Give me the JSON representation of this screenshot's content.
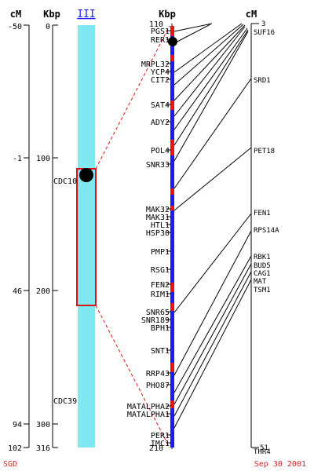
{
  "headers": {
    "left_cm": "cM",
    "left_kbp": "Kbp",
    "chromosome": "III",
    "right_kbp": "Kbp",
    "right_cm": "cM"
  },
  "left_cm_ticks": [
    "-50",
    "-1",
    "46",
    "94",
    "102"
  ],
  "left_kbp_ticks": [
    "0",
    "100",
    "200",
    "300",
    "316"
  ],
  "centromere_label": "CDC10",
  "lower_marker_label": "CDC39",
  "zoom_kbp_ticks": [
    "110",
    "210"
  ],
  "zoom_genes": [
    "PGS1",
    "RER1",
    "MRPL32",
    "YCP4",
    "CIT2",
    "SAT4",
    "ADY2",
    "POL4",
    "SNR33",
    "MAK32",
    "MAK31",
    "HTL1",
    "HSP30",
    "PMP1",
    "RSG1",
    "FEN2",
    "RIM1",
    "SNR65",
    "SNR189",
    "BPH1",
    "SNT1",
    "RRP43",
    "PHO87",
    "MATALPHA2",
    "MATALPHA1",
    "PER1",
    "IMC1"
  ],
  "right_cm_ticks": [
    "3",
    "51"
  ],
  "genetic_genes": [
    "SUF16",
    "SRD1",
    "PET18",
    "FEN1",
    "RPS14A",
    "RBK1",
    "BUD5",
    "CAG1",
    "MAT",
    "TSM1",
    "THR4"
  ],
  "footer": {
    "source": "SGD",
    "date": "Sep 30 2001"
  },
  "colors": {
    "chromosome": "#80e8f0",
    "highlight": "#dd1111",
    "zoom_blue": "#1a1aff",
    "zoom_red": "#ee1111",
    "footer": "#dd2222"
  }
}
